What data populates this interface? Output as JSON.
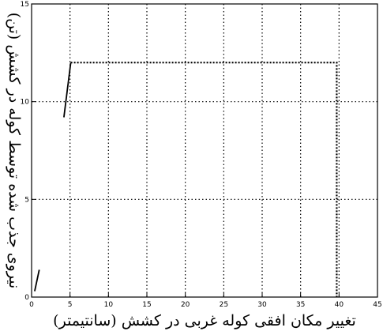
{
  "chart_data": {
    "type": "line",
    "title": "",
    "xlabel": "تغییر مکان افقی کوله غربی در کشش (سانتیمتر)",
    "ylabel": "نیروی جذب شده توسط کوله در کشش (تن)",
    "xlim": [
      0,
      45
    ],
    "ylim": [
      0,
      15
    ],
    "x_ticks": [
      "0",
      "5",
      "10",
      "15",
      "20",
      "25",
      "30",
      "35",
      "40",
      "45"
    ],
    "y_ticks": [
      "0",
      "5",
      "10",
      "15"
    ],
    "grid": true,
    "colors": {
      "line": "#000000",
      "grid": "#000000",
      "axes": "#000000"
    },
    "series": [
      {
        "style": "solid",
        "points": [
          [
            0.4,
            0.3
          ],
          [
            1.0,
            1.4
          ]
        ]
      },
      {
        "style": "solid",
        "points": [
          [
            4.2,
            9.2
          ],
          [
            5.1,
            12.0
          ]
        ]
      },
      {
        "style": "dotted",
        "points": [
          [
            5.1,
            12.0
          ],
          [
            39.7,
            12.0
          ],
          [
            39.7,
            0.0
          ]
        ]
      }
    ]
  }
}
